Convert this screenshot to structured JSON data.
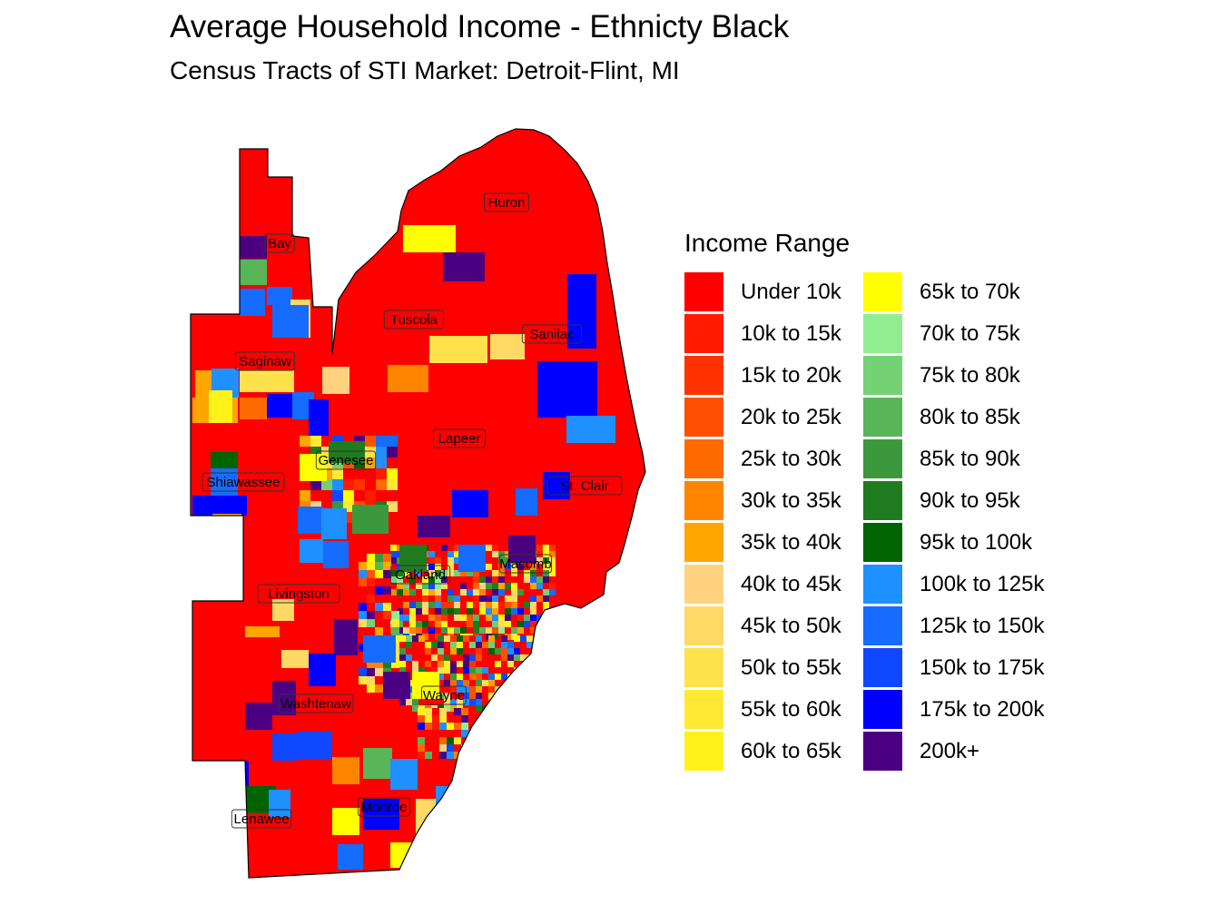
{
  "title": "Average Household Income - Ethnicty Black",
  "subtitle": "Census Tracts of STI Market: Detroit-Flint, MI",
  "legend": {
    "title": "Income Range",
    "items": [
      {
        "label": "Under 10k",
        "color": "#FF0000"
      },
      {
        "label": "10k to 15k",
        "color": "#FF1A00"
      },
      {
        "label": "15k to 20k",
        "color": "#FF3300"
      },
      {
        "label": "20k to 25k",
        "color": "#FF5000"
      },
      {
        "label": "25k to 30k",
        "color": "#FF6A00"
      },
      {
        "label": "30k to 35k",
        "color": "#FF8500"
      },
      {
        "label": "35k to 40k",
        "color": "#FFA500"
      },
      {
        "label": "40k to 45k",
        "color": "#FFD27F"
      },
      {
        "label": "45k to 50k",
        "color": "#FFD966"
      },
      {
        "label": "50k to 55k",
        "color": "#FFE14C"
      },
      {
        "label": "55k to 60k",
        "color": "#FFE933"
      },
      {
        "label": "60k to 65k",
        "color": "#FFF21A"
      },
      {
        "label": "65k to 70k",
        "color": "#FFFF00"
      },
      {
        "label": "70k to 75k",
        "color": "#90EE90"
      },
      {
        "label": "75k to 80k",
        "color": "#74D174"
      },
      {
        "label": "80k to 85k",
        "color": "#58B558"
      },
      {
        "label": "85k to 90k",
        "color": "#3C983C"
      },
      {
        "label": "90k to 95k",
        "color": "#1F7B1F"
      },
      {
        "label": "95k to 100k",
        "color": "#006400"
      },
      {
        "label": "100k to 125k",
        "color": "#1E90FF"
      },
      {
        "label": "125k to 150k",
        "color": "#166CFF"
      },
      {
        "label": "150k to 175k",
        "color": "#0F48FF"
      },
      {
        "label": "175k to 200k",
        "color": "#0000FF"
      },
      {
        "label": "200k+",
        "color": "#4B0082"
      }
    ]
  },
  "counties": [
    "Huron",
    "Bay",
    "Tuscola",
    "Sanilac",
    "Saginaw",
    "Lapeer",
    "Genesee",
    "Shiawassee",
    "St. Clair",
    "Oakland",
    "Macomb",
    "Livingston",
    "Washtenaw",
    "Wayne",
    "Monroe",
    "Lenawee"
  ]
}
